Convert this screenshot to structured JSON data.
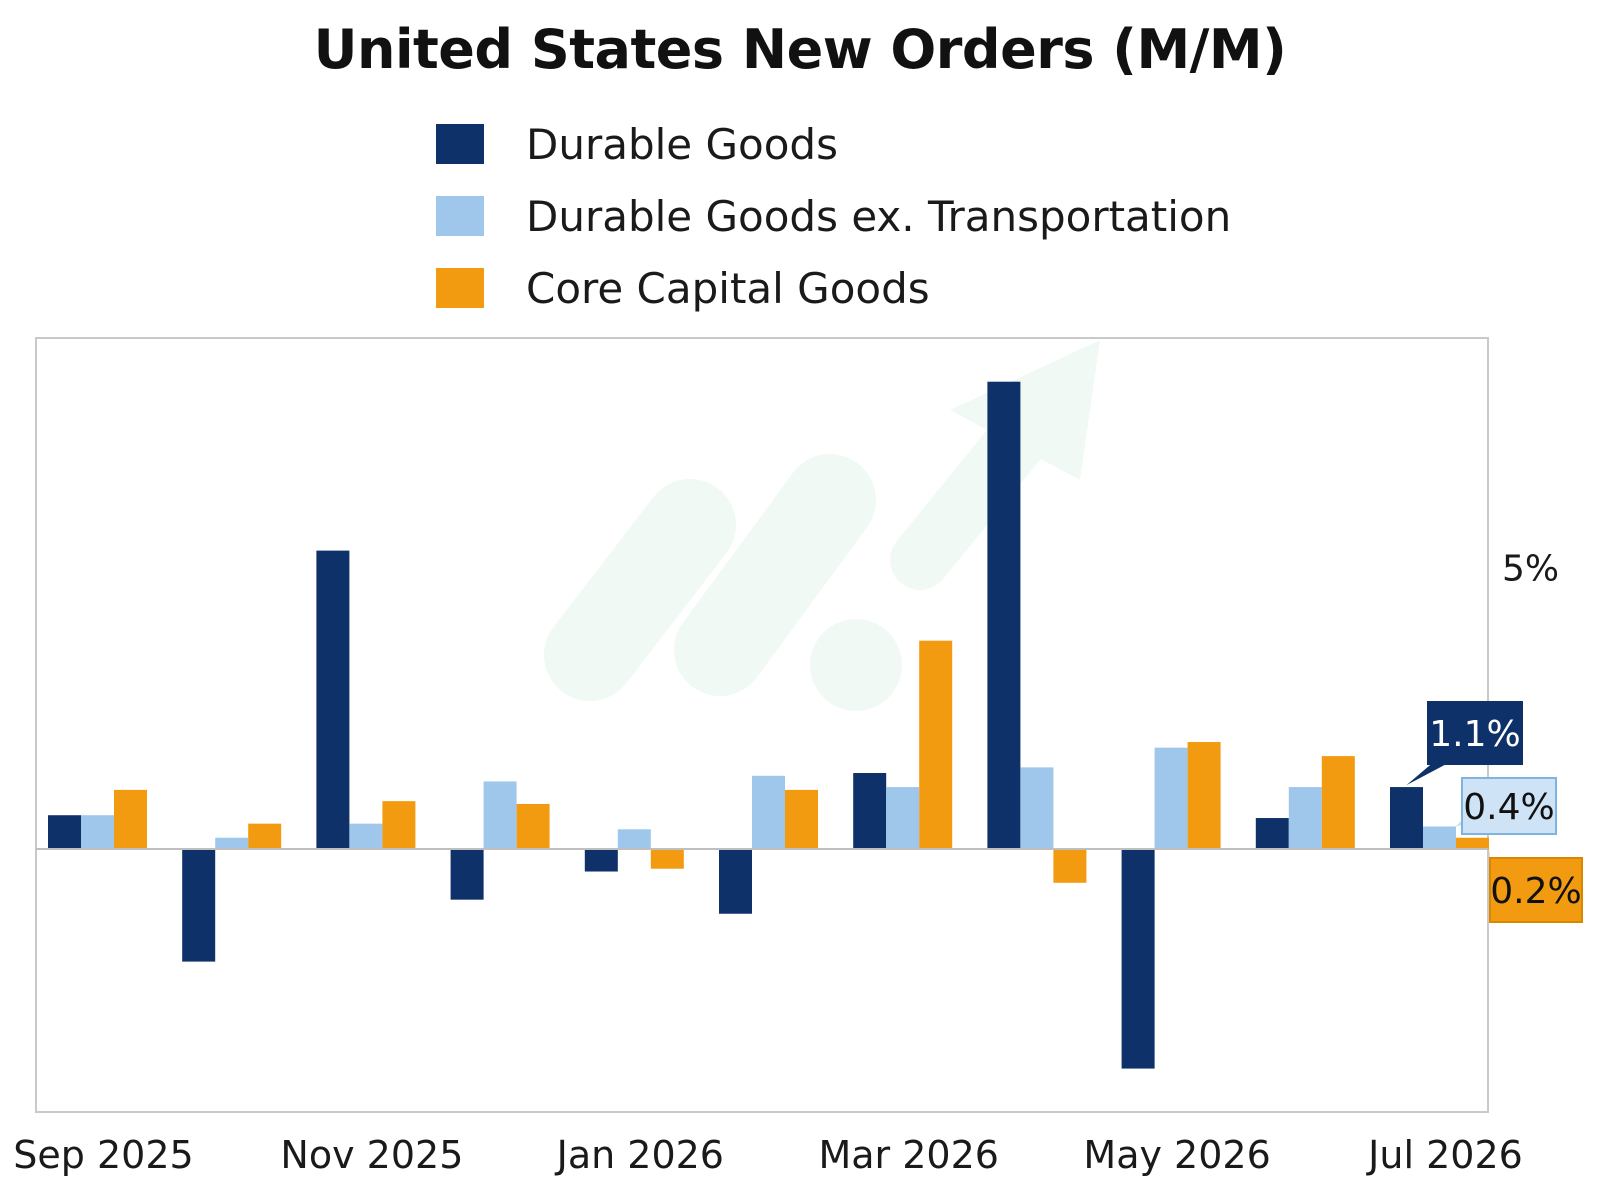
{
  "chart_data": {
    "type": "bar",
    "title": "United States New Orders (M/M)",
    "xlabel": "",
    "ylabel": "",
    "categories": [
      "Sep 2025",
      "Oct 2025",
      "Nov 2025",
      "Dec 2025",
      "Jan 2026",
      "Feb 2026",
      "Mar 2026",
      "Apr 2026",
      "May 2026",
      "Jun 2026",
      "Jul 2026"
    ],
    "x_tick_labels": [
      "Sep 2025",
      "Nov 2025",
      "Jan 2026",
      "Mar 2026",
      "May 2026",
      "Jul 2026"
    ],
    "y_tick_labels": [
      {
        "value": 5.0,
        "label": "5%"
      }
    ],
    "ylim": [
      -5.0,
      8.2
    ],
    "grid": false,
    "legend_position": "top",
    "series": [
      {
        "name": "Durable Goods",
        "color": "#0d3168",
        "values": [
          0.6,
          -2.0,
          5.3,
          -0.9,
          -0.4,
          -1.15,
          1.35,
          8.3,
          -3.9,
          0.55,
          1.1
        ]
      },
      {
        "name": "Durable Goods ex. Transportation",
        "color": "#9fc7ec",
        "values": [
          0.6,
          0.2,
          0.45,
          1.2,
          0.35,
          1.3,
          1.1,
          1.45,
          1.8,
          1.1,
          0.4
        ]
      },
      {
        "name": "Core Capital Goods",
        "color": "#f29b11",
        "values": [
          1.05,
          0.45,
          0.85,
          0.8,
          -0.35,
          1.05,
          3.7,
          -0.6,
          1.9,
          1.65,
          0.2
        ]
      }
    ],
    "annotations": [
      {
        "series": "Durable Goods",
        "category": "Jul 2026",
        "label": "1.1%"
      },
      {
        "series": "Durable Goods ex. Transportation",
        "category": "Jul 2026",
        "label": "0.4%"
      },
      {
        "series": "Core Capital Goods",
        "category": "Jul 2026",
        "label": "0.2%"
      }
    ]
  }
}
